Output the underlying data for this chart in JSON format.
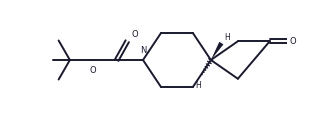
{
  "bg_color": "#ffffff",
  "lc": "#1a1a2e",
  "lw": 1.4,
  "figsize": [
    3.31,
    1.2
  ],
  "dpi": 100,
  "xlim": [
    0,
    6.5
  ],
  "ylim": [
    0,
    3.2
  ]
}
